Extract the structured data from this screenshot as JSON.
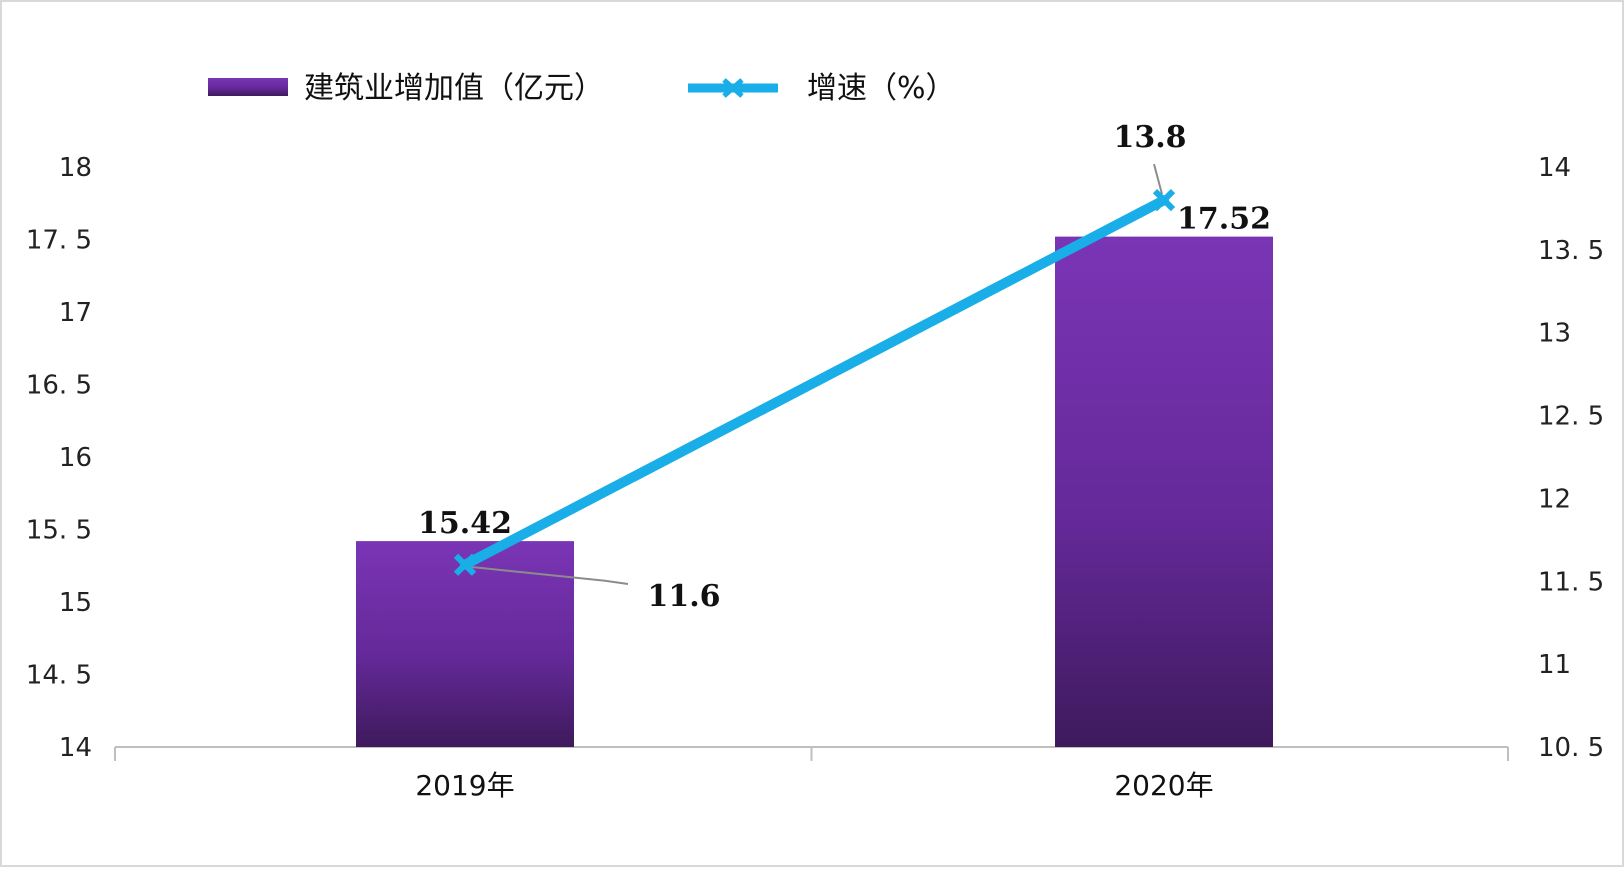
{
  "chart_data": {
    "type": "bar",
    "categories": [
      "2019年",
      "2020年"
    ],
    "series": [
      {
        "name": "建筑业增加值（亿元）",
        "type": "bar",
        "axis": "left",
        "values": [
          15.42,
          17.52
        ],
        "labels": [
          "15.42",
          "17.52"
        ],
        "color": "#7030a0"
      },
      {
        "name": "增速（%）",
        "type": "line",
        "axis": "right",
        "values": [
          11.6,
          13.8
        ],
        "labels": [
          "11.6",
          "13.8"
        ],
        "color": "#1aaee8"
      }
    ],
    "y_left": {
      "min": 14,
      "max": 18,
      "step": 0.5,
      "tick_labels": [
        "14",
        "14. 5",
        "15",
        "15. 5",
        "16",
        "16. 5",
        "17",
        "17. 5",
        "18"
      ]
    },
    "y_right": {
      "min": 10.5,
      "max": 14,
      "step": 0.5,
      "tick_labels": [
        "10. 5",
        "11",
        "11. 5",
        "12",
        "12. 5",
        "13",
        "13. 5",
        "14"
      ]
    },
    "legend_position": "top",
    "grid": false,
    "colors": {
      "bar_top": "#7a35b5",
      "bar_bottom": "#3e1a5c",
      "line": "#1aaee8",
      "axis": "#bfbfbf",
      "leader": "#8c8c8c"
    }
  }
}
